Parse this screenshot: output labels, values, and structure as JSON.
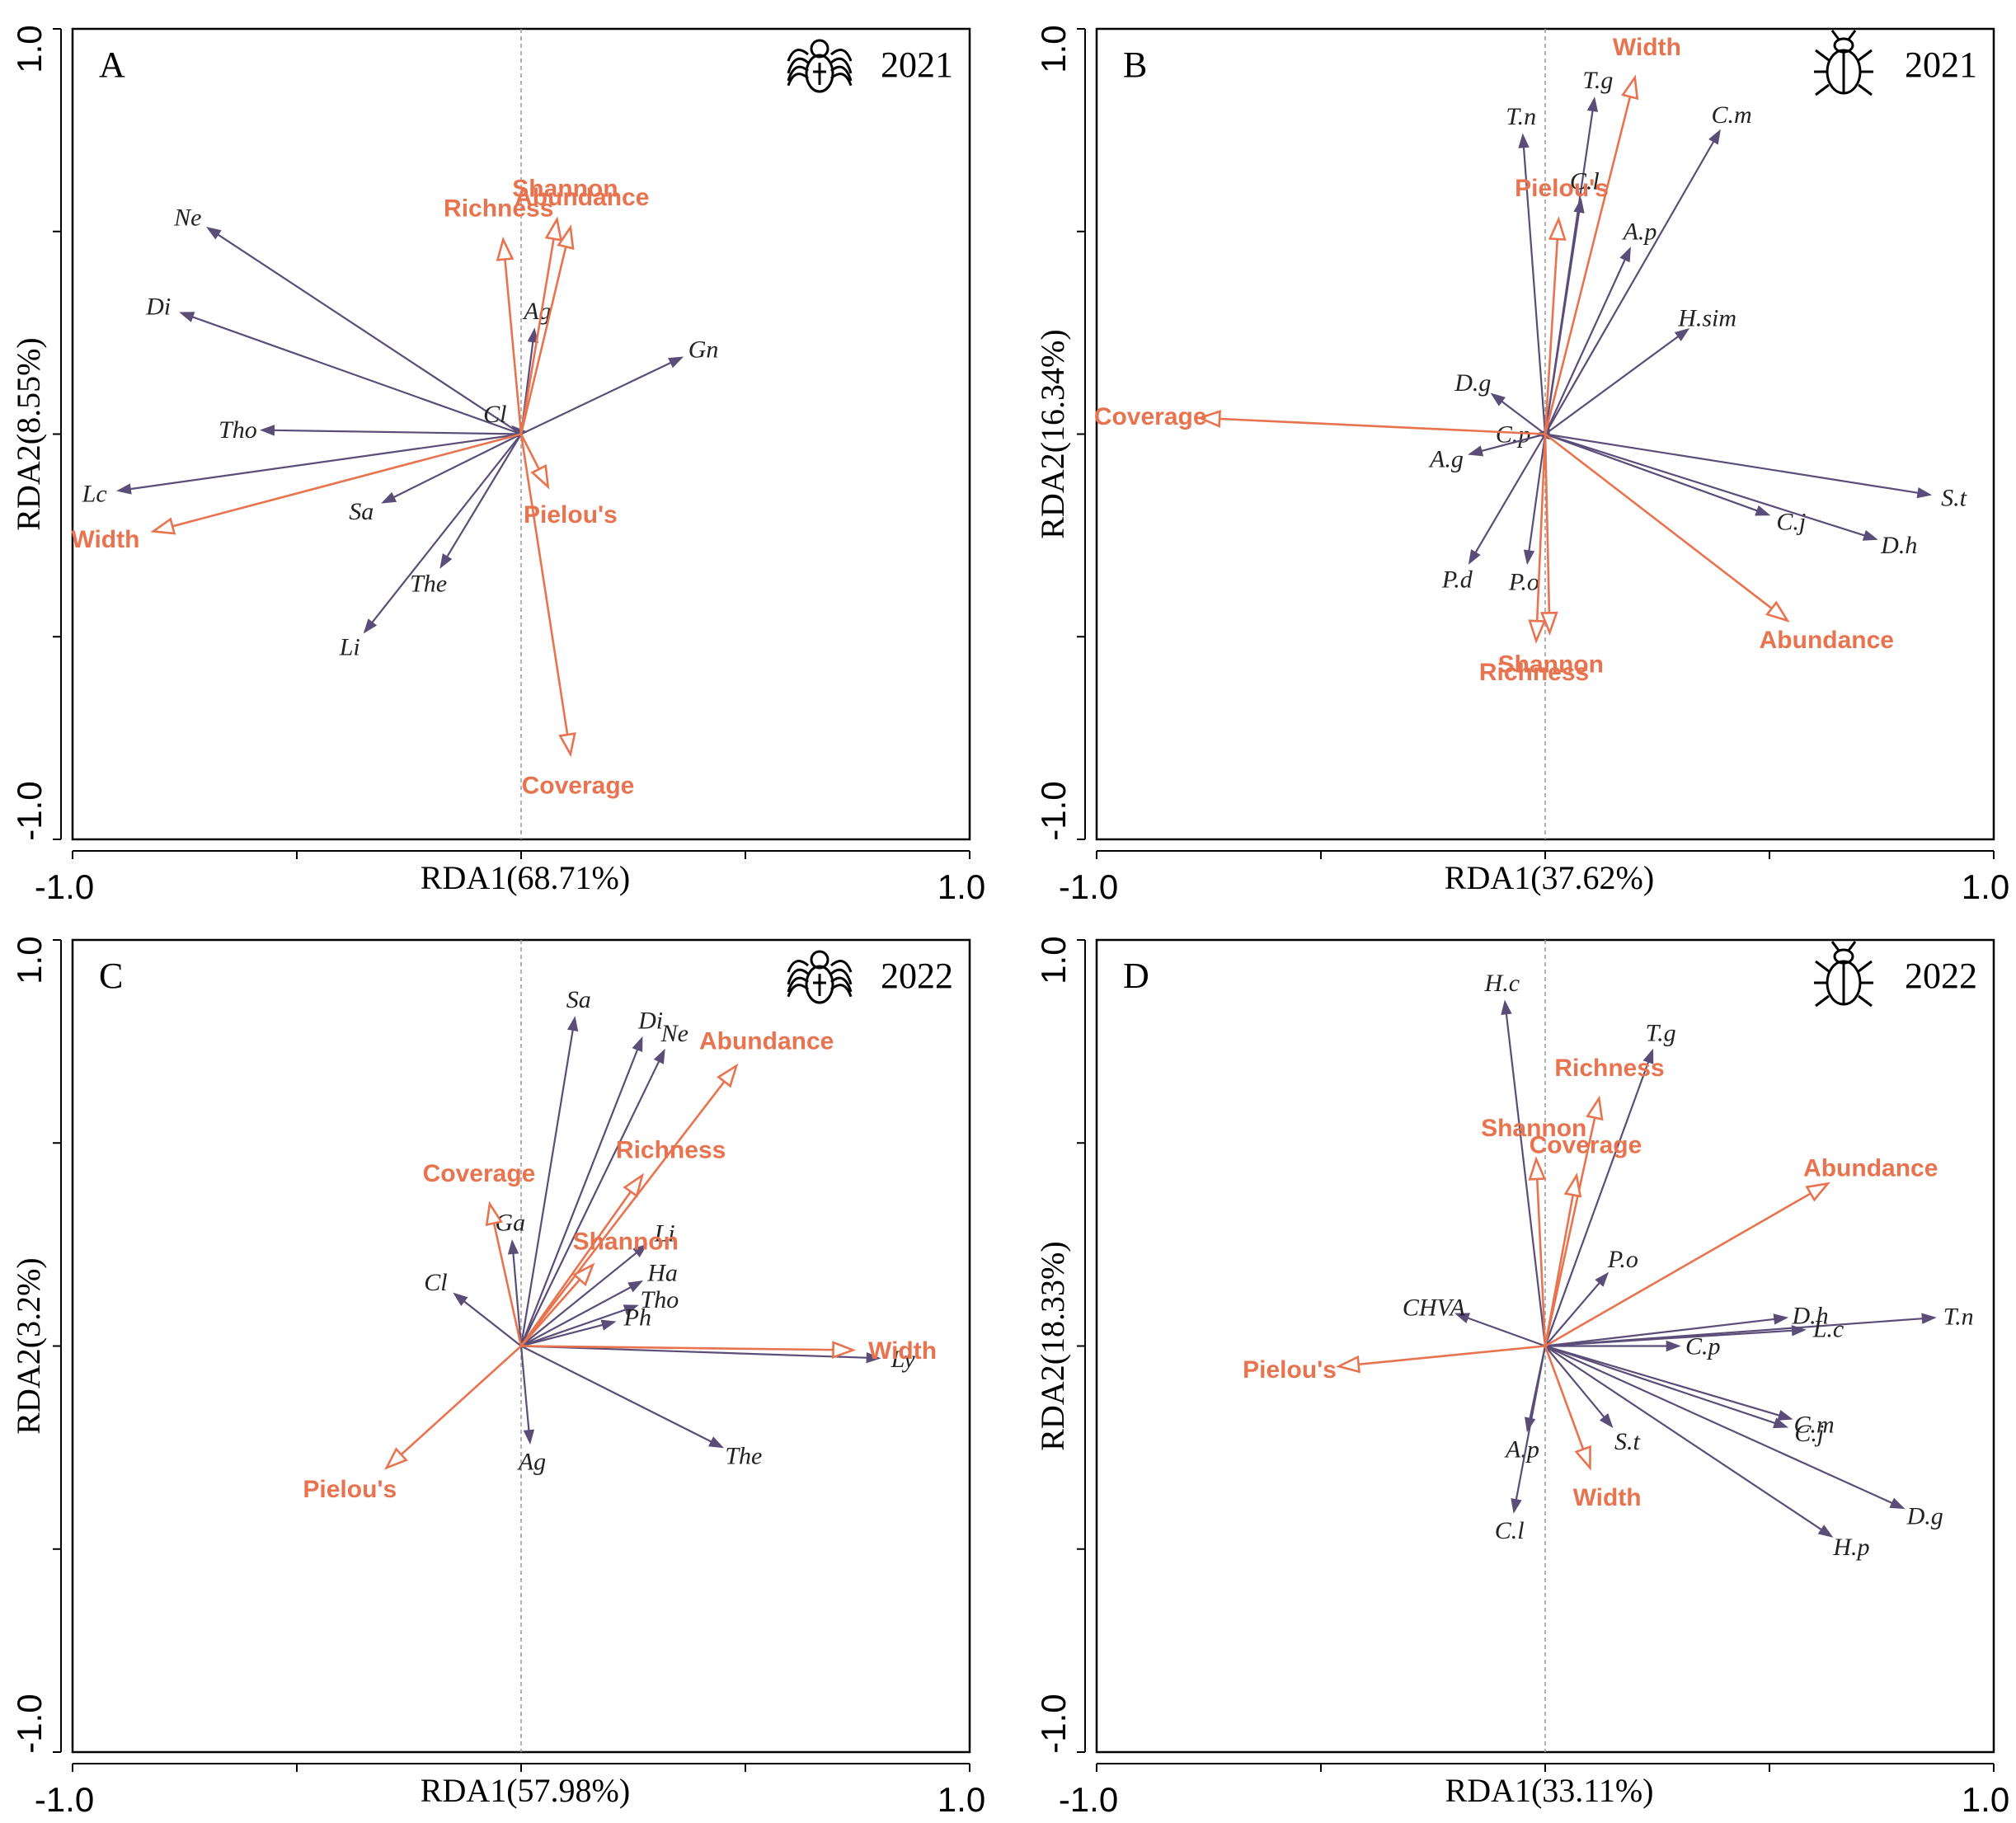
{
  "colors": {
    "species": "#5a4d78",
    "env": "#e8734f",
    "axis": "#000000",
    "zero": "#999999"
  },
  "chart_data": [
    {
      "type": "rda-biplot",
      "panel": "A",
      "year": "2021",
      "icon": "spider-icon",
      "xlabel": "RDA1(68.71%)",
      "ylabel": "RDA2(8.55%)",
      "xlim": [
        -1.0,
        1.0
      ],
      "ylim": [
        -1.0,
        1.0
      ],
      "x_tick_labels": [
        "-1.0",
        "1.0"
      ],
      "y_tick_labels": [
        "-1.0",
        "1.0"
      ],
      "species": [
        {
          "name": "Ne",
          "x": -0.7,
          "y": 0.51
        },
        {
          "name": "Di",
          "x": -0.76,
          "y": 0.3
        },
        {
          "name": "Tho",
          "x": -0.58,
          "y": 0.01
        },
        {
          "name": "Lc",
          "x": -0.9,
          "y": -0.14
        },
        {
          "name": "Cl",
          "x": -0.02,
          "y": 0.02
        },
        {
          "name": "Sa",
          "x": -0.31,
          "y": -0.17
        },
        {
          "name": "The",
          "x": -0.18,
          "y": -0.33
        },
        {
          "name": "Li",
          "x": -0.35,
          "y": -0.49
        },
        {
          "name": "Ag",
          "x": 0.03,
          "y": 0.26
        },
        {
          "name": "Gn",
          "x": 0.36,
          "y": 0.19
        }
      ],
      "env": [
        {
          "name": "Shannon",
          "x": 0.08,
          "y": 0.53
        },
        {
          "name": "Abundance",
          "x": 0.11,
          "y": 0.51
        },
        {
          "name": "Richness",
          "x": -0.04,
          "y": 0.48
        },
        {
          "name": "Pielou's",
          "x": 0.06,
          "y": -0.13
        },
        {
          "name": "Width",
          "x": -0.82,
          "y": -0.24
        },
        {
          "name": "Coverage",
          "x": 0.11,
          "y": -0.79
        }
      ]
    },
    {
      "type": "rda-biplot",
      "panel": "B",
      "year": "2021",
      "icon": "beetle-icon",
      "xlabel": "RDA1(37.62%)",
      "ylabel": "RDA2(16.34%)",
      "xlim": [
        -1.0,
        1.0
      ],
      "ylim": [
        -1.0,
        1.0
      ],
      "x_tick_labels": [
        "-1.0",
        "1.0"
      ],
      "y_tick_labels": [
        "-1.0",
        "1.0"
      ],
      "species": [
        {
          "name": "T.n",
          "x": -0.05,
          "y": 0.74
        },
        {
          "name": "T.g",
          "x": 0.11,
          "y": 0.83
        },
        {
          "name": "C.m",
          "x": 0.39,
          "y": 0.75
        },
        {
          "name": "C.l",
          "x": 0.08,
          "y": 0.58
        },
        {
          "name": "A.p",
          "x": 0.19,
          "y": 0.46
        },
        {
          "name": "H.sim",
          "x": 0.32,
          "y": 0.26
        },
        {
          "name": "D.g",
          "x": -0.12,
          "y": 0.1
        },
        {
          "name": "C.p",
          "x": -0.02,
          "y": 0.0
        },
        {
          "name": "A.g",
          "x": -0.17,
          "y": -0.05
        },
        {
          "name": "P.d",
          "x": -0.17,
          "y": -0.32
        },
        {
          "name": "P.o",
          "x": -0.04,
          "y": -0.32
        },
        {
          "name": "C.j",
          "x": 0.5,
          "y": -0.2
        },
        {
          "name": "D.h",
          "x": 0.74,
          "y": -0.26
        },
        {
          "name": "S.t",
          "x": 0.86,
          "y": -0.15
        }
      ],
      "env": [
        {
          "name": "Width",
          "x": 0.2,
          "y": 0.88
        },
        {
          "name": "Pielou's",
          "x": 0.03,
          "y": 0.53
        },
        {
          "name": "Coverage",
          "x": -0.77,
          "y": 0.04
        },
        {
          "name": "Richness",
          "x": -0.02,
          "y": -0.51
        },
        {
          "name": "Shannon",
          "x": 0.01,
          "y": -0.49
        },
        {
          "name": "Abundance",
          "x": 0.54,
          "y": -0.46
        }
      ]
    },
    {
      "type": "rda-biplot",
      "panel": "C",
      "year": "2022",
      "icon": "spider-icon",
      "xlabel": "RDA1(57.98%)",
      "ylabel": "RDA2(3.2%)",
      "xlim": [
        -1.0,
        1.0
      ],
      "ylim": [
        -1.0,
        1.0
      ],
      "x_tick_labels": [
        "-1.0",
        "1.0"
      ],
      "y_tick_labels": [
        "-1.0",
        "1.0"
      ],
      "species": [
        {
          "name": "Sa",
          "x": 0.12,
          "y": 0.81
        },
        {
          "name": "Di",
          "x": 0.27,
          "y": 0.76
        },
        {
          "name": "Ne",
          "x": 0.32,
          "y": 0.73
        },
        {
          "name": "Li",
          "x": 0.28,
          "y": 0.25
        },
        {
          "name": "Ha",
          "x": 0.27,
          "y": 0.16
        },
        {
          "name": "Tho",
          "x": 0.26,
          "y": 0.1
        },
        {
          "name": "Ph",
          "x": 0.21,
          "y": 0.06
        },
        {
          "name": "Ga",
          "x": -0.02,
          "y": 0.26
        },
        {
          "name": "Cl",
          "x": -0.15,
          "y": 0.13
        },
        {
          "name": "Ly",
          "x": 0.8,
          "y": -0.03
        },
        {
          "name": "The",
          "x": 0.45,
          "y": -0.25
        },
        {
          "name": "Ag",
          "x": 0.02,
          "y": -0.24
        }
      ],
      "env": [
        {
          "name": "Abundance",
          "x": 0.48,
          "y": 0.69
        },
        {
          "name": "Richness",
          "x": 0.27,
          "y": 0.42
        },
        {
          "name": "Coverage",
          "x": -0.07,
          "y": 0.35
        },
        {
          "name": "Shannon",
          "x": 0.16,
          "y": 0.2
        },
        {
          "name": "Width",
          "x": 0.74,
          "y": -0.01
        },
        {
          "name": "Pielou's",
          "x": -0.3,
          "y": -0.3
        }
      ]
    },
    {
      "type": "rda-biplot",
      "panel": "D",
      "year": "2022",
      "icon": "beetle-icon",
      "xlabel": "RDA1(33.11%)",
      "ylabel": "RDA2(18.33%)",
      "xlim": [
        -1.0,
        1.0
      ],
      "ylim": [
        -1.0,
        1.0
      ],
      "x_tick_labels": [
        "-1.0",
        "1.0"
      ],
      "y_tick_labels": [
        "-1.0",
        "1.0"
      ],
      "species": [
        {
          "name": "H.c",
          "x": -0.09,
          "y": 0.85
        },
        {
          "name": "T.g",
          "x": 0.24,
          "y": 0.73
        },
        {
          "name": "P.o",
          "x": 0.14,
          "y": 0.18
        },
        {
          "name": "CHVA",
          "x": -0.2,
          "y": 0.08
        },
        {
          "name": "D.h",
          "x": 0.54,
          "y": 0.07
        },
        {
          "name": "T.n",
          "x": 0.87,
          "y": 0.07
        },
        {
          "name": "L.c",
          "x": 0.58,
          "y": 0.04
        },
        {
          "name": "C.p",
          "x": 0.3,
          "y": 0.0
        },
        {
          "name": "C.m",
          "x": 0.55,
          "y": -0.18
        },
        {
          "name": "C.j",
          "x": 0.54,
          "y": -0.2
        },
        {
          "name": "S.t",
          "x": 0.15,
          "y": -0.2
        },
        {
          "name": "A.p",
          "x": -0.04,
          "y": -0.21
        },
        {
          "name": "C.l",
          "x": -0.07,
          "y": -0.41
        },
        {
          "name": "D.g",
          "x": 0.8,
          "y": -0.4
        },
        {
          "name": "H.p",
          "x": 0.64,
          "y": -0.47
        }
      ],
      "env": [
        {
          "name": "Richness",
          "x": 0.12,
          "y": 0.61
        },
        {
          "name": "Shannon",
          "x": -0.02,
          "y": 0.46
        },
        {
          "name": "Coverage",
          "x": 0.07,
          "y": 0.42
        },
        {
          "name": "Abundance",
          "x": 0.63,
          "y": 0.4
        },
        {
          "name": "Pielou's",
          "x": -0.46,
          "y": -0.05
        },
        {
          "name": "Width",
          "x": 0.1,
          "y": -0.3
        }
      ]
    }
  ]
}
